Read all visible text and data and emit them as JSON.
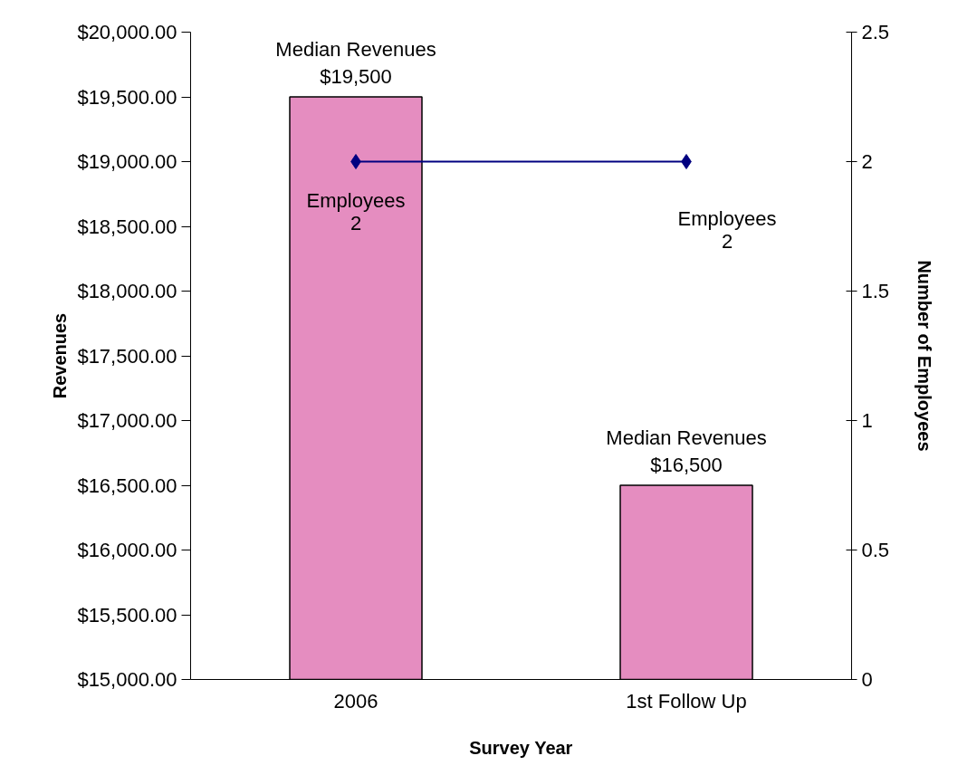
{
  "chart_data": {
    "type": "bar",
    "xlabel": "Survey Year",
    "ylabel": "Revenues",
    "y2label": "Number of Employees",
    "categories": [
      "2006",
      "1st Follow Up"
    ],
    "series": [
      {
        "color": "#e58dc0",
        "values": [
          19500,
          16500
        ],
        "value_labels": [
          "Median Revenues\n$19,500",
          "Median Revenues\n$16,500"
        ]
      },
      {
        "type": "line",
        "axis": "y2",
        "color": "#000080",
        "values": [
          2,
          2
        ],
        "marker": "diamond",
        "line_style": "solid",
        "value_labels": [
          "Employees\n2",
          "Employees\n2"
        ]
      }
    ],
    "ylim": [
      15000,
      20000
    ],
    "yticks": [
      {
        "value": 15000,
        "label": "$15,000.00"
      },
      {
        "value": 15500,
        "label": "$15,500.00"
      },
      {
        "value": 16000,
        "label": "$16,000.00"
      },
      {
        "value": 16500,
        "label": "$16,500.00"
      },
      {
        "value": 17000,
        "label": "$17,000.00"
      },
      {
        "value": 17500,
        "label": "$17,500.00"
      },
      {
        "value": 18000,
        "label": "$18,000.00"
      },
      {
        "value": 18500,
        "label": "$18,500.00"
      },
      {
        "value": 19000,
        "label": "$19,000.00"
      },
      {
        "value": 19500,
        "label": "$19,500.00"
      },
      {
        "value": 20000,
        "label": "$20,000.00"
      }
    ],
    "y2lim": [
      0,
      2.5
    ],
    "y2ticks": [
      0,
      0.5,
      1,
      1.5,
      2,
      2.5
    ],
    "grid": false
  }
}
